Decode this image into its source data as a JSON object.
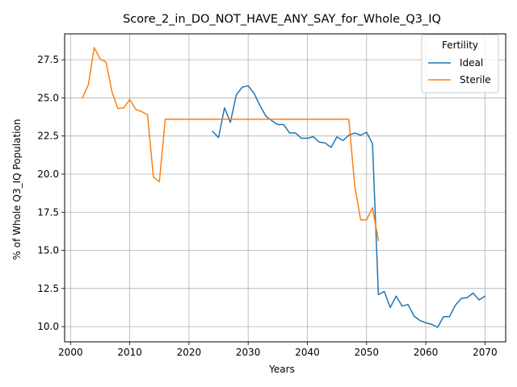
{
  "chart_data": {
    "type": "line",
    "title": "Score_2_in_DO_NOT_HAVE_ANY_SAY_for_Whole_Q3_IQ",
    "xlabel": "Years",
    "ylabel": "% of Whole Q3_IQ Population",
    "xlim": [
      1999,
      2073.5
    ],
    "ylim": [
      9.0,
      29.2
    ],
    "xticks": [
      2000,
      2010,
      2020,
      2030,
      2040,
      2050,
      2060,
      2070
    ],
    "yticks": [
      10.0,
      12.5,
      15.0,
      17.5,
      20.0,
      22.5,
      25.0,
      27.5
    ],
    "grid": true,
    "legend": {
      "title": "Fertility",
      "position": "top-right"
    },
    "series": [
      {
        "name": "Ideal",
        "color": "#1f77b4",
        "x": [
          2024,
          2025,
          2026,
          2027,
          2028,
          2029,
          2030,
          2031,
          2032,
          2033,
          2034,
          2035,
          2036,
          2037,
          2038,
          2039,
          2040,
          2041,
          2042,
          2043,
          2044,
          2045,
          2046,
          2047,
          2048,
          2049,
          2050,
          2051,
          2052,
          2053,
          2054,
          2055,
          2056,
          2057,
          2058,
          2059,
          2060,
          2061,
          2062,
          2063,
          2064,
          2065,
          2066,
          2067,
          2068,
          2069,
          2070
        ],
        "y": [
          22.8,
          22.4,
          24.35,
          23.4,
          25.2,
          25.7,
          25.8,
          25.3,
          24.5,
          23.8,
          23.5,
          23.25,
          23.25,
          22.7,
          22.7,
          22.35,
          22.35,
          22.45,
          22.1,
          22.05,
          21.75,
          22.45,
          22.2,
          22.55,
          22.7,
          22.55,
          22.75,
          22.0,
          12.1,
          12.3,
          11.25,
          12.0,
          11.35,
          11.45,
          10.7,
          10.4,
          10.25,
          10.15,
          9.95,
          10.65,
          10.65,
          11.4,
          11.85,
          11.9,
          12.2,
          11.75,
          12.0
        ]
      },
      {
        "name": "Sterile",
        "color": "#ff7f0e",
        "x": [
          2002,
          2003,
          2004,
          2005,
          2006,
          2007,
          2008,
          2009,
          2010,
          2011,
          2012,
          2013,
          2014,
          2015,
          2016,
          2017,
          2018,
          2019,
          2020,
          2021,
          2022,
          2023,
          2024,
          2025,
          2026,
          2027,
          2028,
          2029,
          2030,
          2031,
          2032,
          2033,
          2034,
          2035,
          2036,
          2037,
          2038,
          2039,
          2040,
          2041,
          2042,
          2043,
          2044,
          2045,
          2046,
          2047,
          2048,
          2049,
          2050,
          2051,
          2052
        ],
        "y": [
          25.0,
          25.85,
          28.3,
          27.55,
          27.35,
          25.4,
          24.3,
          24.35,
          24.9,
          24.25,
          24.1,
          23.9,
          19.8,
          19.5,
          23.6,
          23.6,
          23.6,
          23.6,
          23.6,
          23.6,
          23.6,
          23.6,
          23.6,
          23.6,
          23.6,
          23.6,
          23.6,
          23.6,
          23.6,
          23.6,
          23.6,
          23.6,
          23.6,
          23.6,
          23.6,
          23.6,
          23.6,
          23.6,
          23.6,
          23.6,
          23.6,
          23.6,
          23.6,
          23.6,
          23.6,
          23.6,
          19.25,
          17.0,
          17.0,
          17.8,
          15.65
        ]
      }
    ]
  }
}
